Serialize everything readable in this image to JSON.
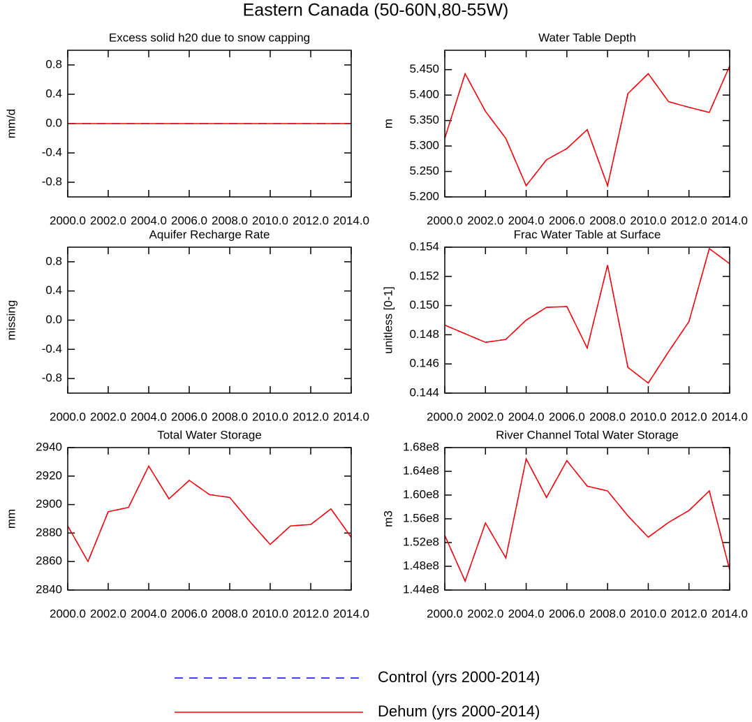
{
  "title": "Eastern Canada (50-60N,80-55W)",
  "legend": [
    {
      "name": "Control (yrs 2000-2014)",
      "color": "#0000ff",
      "dash": true
    },
    {
      "name": "Dehum (yrs 2000-2014)",
      "color": "#ff0000",
      "dash": false
    }
  ],
  "chart_data": [
    {
      "type": "line",
      "title": "Excess solid h20 due to snow capping",
      "ylabel": "mm/d",
      "x": [
        2000,
        2001,
        2002,
        2003,
        2004,
        2005,
        2006,
        2007,
        2008,
        2009,
        2010,
        2011,
        2012,
        2013,
        2014
      ],
      "xlim": [
        2000,
        2014
      ],
      "xticks": [
        {
          "value": 2000,
          "label": "2000.0"
        },
        {
          "value": 2002,
          "label": "2002.0"
        },
        {
          "value": 2004,
          "label": "2004.0"
        },
        {
          "value": 2006,
          "label": "2006.0"
        },
        {
          "value": 2008,
          "label": "2008.0"
        },
        {
          "value": 2010,
          "label": "2010.0"
        },
        {
          "value": 2012,
          "label": "2012.0"
        },
        {
          "value": 2014,
          "label": "2014.0"
        }
      ],
      "ylim": [
        -1,
        1
      ],
      "yticks": [
        -0.8,
        -0.4,
        {
          "value": 0,
          "label": "0.0"
        },
        0.4,
        0.8
      ],
      "series": [
        {
          "values": [
            0,
            0,
            0,
            0,
            0,
            0,
            0,
            0,
            0,
            0,
            0,
            0,
            0,
            0,
            0
          ]
        },
        {
          "values": [
            0,
            0,
            0,
            0,
            0,
            0,
            0,
            0,
            0,
            0,
            0,
            0,
            0,
            0,
            0
          ]
        }
      ]
    },
    {
      "type": "line",
      "title": "Water Table Depth",
      "ylabel": "m",
      "x": [
        2000,
        2001,
        2002,
        2003,
        2004,
        2005,
        2006,
        2007,
        2008,
        2009,
        2010,
        2011,
        2012,
        2013,
        2014
      ],
      "xlim": [
        2000,
        2014
      ],
      "xticks": [
        {
          "value": 2000,
          "label": "2000.0"
        },
        {
          "value": 2002,
          "label": "2002.0"
        },
        {
          "value": 2004,
          "label": "2004.0"
        },
        {
          "value": 2006,
          "label": "2006.0"
        },
        {
          "value": 2008,
          "label": "2008.0"
        },
        {
          "value": 2010,
          "label": "2010.0"
        },
        {
          "value": 2012,
          "label": "2012.0"
        },
        {
          "value": 2014,
          "label": "2014.0"
        }
      ],
      "ylim": [
        5.2,
        5.488
      ],
      "yticks": [
        {
          "value": 5.2,
          "label": "5.200"
        },
        {
          "value": 5.25,
          "label": "5.250"
        },
        {
          "value": 5.3,
          "label": "5.300"
        },
        {
          "value": 5.35,
          "label": "5.350"
        },
        {
          "value": 5.4,
          "label": "5.400"
        },
        {
          "value": 5.45,
          "label": "5.450"
        }
      ],
      "series": [
        {
          "values": [
            5.315,
            5.442,
            5.368,
            5.315,
            5.222,
            5.273,
            5.295,
            5.332,
            5.222,
            5.403,
            5.442,
            5.387,
            5.376,
            5.366,
            5.457
          ]
        },
        {
          "values": [
            5.315,
            5.442,
            5.368,
            5.315,
            5.222,
            5.273,
            5.295,
            5.332,
            5.222,
            5.403,
            5.442,
            5.387,
            5.376,
            5.366,
            5.457
          ]
        }
      ]
    },
    {
      "type": "line",
      "title": "Aquifer Recharge Rate",
      "ylabel": "missing",
      "x": [
        2000,
        2001,
        2002,
        2003,
        2004,
        2005,
        2006,
        2007,
        2008,
        2009,
        2010,
        2011,
        2012,
        2013,
        2014
      ],
      "xlim": [
        2000,
        2014
      ],
      "xticks": [
        {
          "value": 2000,
          "label": "2000.0"
        },
        {
          "value": 2002,
          "label": "2002.0"
        },
        {
          "value": 2004,
          "label": "2004.0"
        },
        {
          "value": 2006,
          "label": "2006.0"
        },
        {
          "value": 2008,
          "label": "2008.0"
        },
        {
          "value": 2010,
          "label": "2010.0"
        },
        {
          "value": 2012,
          "label": "2012.0"
        },
        {
          "value": 2014,
          "label": "2014.0"
        }
      ],
      "ylim": [
        -1,
        1
      ],
      "yticks": [
        -0.8,
        -0.4,
        {
          "value": 0,
          "label": "0.0"
        },
        0.4,
        0.8
      ],
      "series": [
        {
          "values": [
            null,
            null,
            null,
            null,
            null,
            null,
            null,
            null,
            null,
            null,
            null,
            null,
            null,
            null,
            null
          ]
        },
        {
          "values": [
            null,
            null,
            null,
            null,
            null,
            null,
            null,
            null,
            null,
            null,
            null,
            null,
            null,
            null,
            null
          ]
        }
      ]
    },
    {
      "type": "line",
      "title": "Frac Water Table at Surface",
      "ylabel": "unitless [0-1]",
      "x": [
        2000,
        2001,
        2002,
        2003,
        2004,
        2005,
        2006,
        2007,
        2008,
        2009,
        2010,
        2011,
        2012,
        2013,
        2014
      ],
      "xlim": [
        2000,
        2014
      ],
      "xticks": [
        {
          "value": 2000,
          "label": "2000.0"
        },
        {
          "value": 2002,
          "label": "2002.0"
        },
        {
          "value": 2004,
          "label": "2004.0"
        },
        {
          "value": 2006,
          "label": "2006.0"
        },
        {
          "value": 2008,
          "label": "2008.0"
        },
        {
          "value": 2010,
          "label": "2010.0"
        },
        {
          "value": 2012,
          "label": "2012.0"
        },
        {
          "value": 2014,
          "label": "2014.0"
        }
      ],
      "ylim": [
        0.144,
        0.154
      ],
      "yticks": [
        0.144,
        0.146,
        0.148,
        {
          "value": 0.15,
          "label": "0.150"
        },
        0.152,
        0.154
      ],
      "series": [
        {
          "values": [
            0.14866,
            0.14807,
            0.14748,
            0.14768,
            0.149,
            0.14988,
            0.14993,
            0.14709,
            0.15277,
            0.14576,
            0.14469,
            0.14684,
            0.1489,
            0.1539,
            0.15287
          ]
        },
        {
          "values": [
            0.14866,
            0.14807,
            0.14748,
            0.14768,
            0.149,
            0.14988,
            0.14993,
            0.14709,
            0.15277,
            0.14576,
            0.14469,
            0.14684,
            0.1489,
            0.1539,
            0.15287
          ]
        }
      ]
    },
    {
      "type": "line",
      "title": "Total Water Storage",
      "ylabel": "mm",
      "x": [
        2000,
        2001,
        2002,
        2003,
        2004,
        2005,
        2006,
        2007,
        2008,
        2009,
        2010,
        2011,
        2012,
        2013,
        2014
      ],
      "xlim": [
        2000,
        2014
      ],
      "xticks": [
        {
          "value": 2000,
          "label": "2000.0"
        },
        {
          "value": 2002,
          "label": "2002.0"
        },
        {
          "value": 2004,
          "label": "2004.0"
        },
        {
          "value": 2006,
          "label": "2006.0"
        },
        {
          "value": 2008,
          "label": "2008.0"
        },
        {
          "value": 2010,
          "label": "2010.0"
        },
        {
          "value": 2012,
          "label": "2012.0"
        },
        {
          "value": 2014,
          "label": "2014.0"
        }
      ],
      "ylim": [
        2840,
        2940
      ],
      "yticks": [
        2840,
        2860,
        2880,
        2900,
        2920,
        2940
      ],
      "series": [
        {
          "values": [
            2885,
            2860,
            2895,
            2898,
            2927,
            2904,
            2917,
            2907,
            2905,
            2888,
            2872,
            2885,
            2886,
            2897,
            2877
          ]
        },
        {
          "values": [
            2885,
            2860,
            2895,
            2898,
            2927,
            2904,
            2917,
            2907,
            2905,
            2888,
            2872,
            2885,
            2886,
            2897,
            2877
          ]
        }
      ]
    },
    {
      "type": "line",
      "title": "River Channel Total Water Storage",
      "ylabel": "m3",
      "x": [
        2000,
        2001,
        2002,
        2003,
        2004,
        2005,
        2006,
        2007,
        2008,
        2009,
        2010,
        2011,
        2012,
        2013,
        2014
      ],
      "xlim": [
        2000,
        2014
      ],
      "xticks": [
        {
          "value": 2000,
          "label": "2000.0"
        },
        {
          "value": 2002,
          "label": "2002.0"
        },
        {
          "value": 2004,
          "label": "2004.0"
        },
        {
          "value": 2006,
          "label": "2006.0"
        },
        {
          "value": 2008,
          "label": "2008.0"
        },
        {
          "value": 2010,
          "label": "2010.0"
        },
        {
          "value": 2012,
          "label": "2012.0"
        },
        {
          "value": 2014,
          "label": "2014.0"
        }
      ],
      "ylim": [
        144000000,
        168000000
      ],
      "yticks": [
        {
          "value": 144000000,
          "label": "1.44e8"
        },
        {
          "value": 148000000,
          "label": "1.48e8"
        },
        {
          "value": 152000000,
          "label": "1.52e8"
        },
        {
          "value": 156000000,
          "label": "1.56e8"
        },
        {
          "value": 160000000,
          "label": "1.60e8"
        },
        {
          "value": 164000000,
          "label": "1.64e8"
        },
        {
          "value": 168000000,
          "label": "1.68e8"
        }
      ],
      "series": [
        {
          "values": [
            153200000,
            145500000,
            155300000,
            149400000,
            166100000,
            159600000,
            165800000,
            161500000,
            160700000,
            156500000,
            152900000,
            155400000,
            157400000,
            160700000,
            147400000
          ]
        },
        {
          "values": [
            153200000,
            145500000,
            155300000,
            149400000,
            166100000,
            159600000,
            165800000,
            161500000,
            160700000,
            156500000,
            152900000,
            155400000,
            157400000,
            160700000,
            147400000
          ]
        }
      ]
    }
  ]
}
